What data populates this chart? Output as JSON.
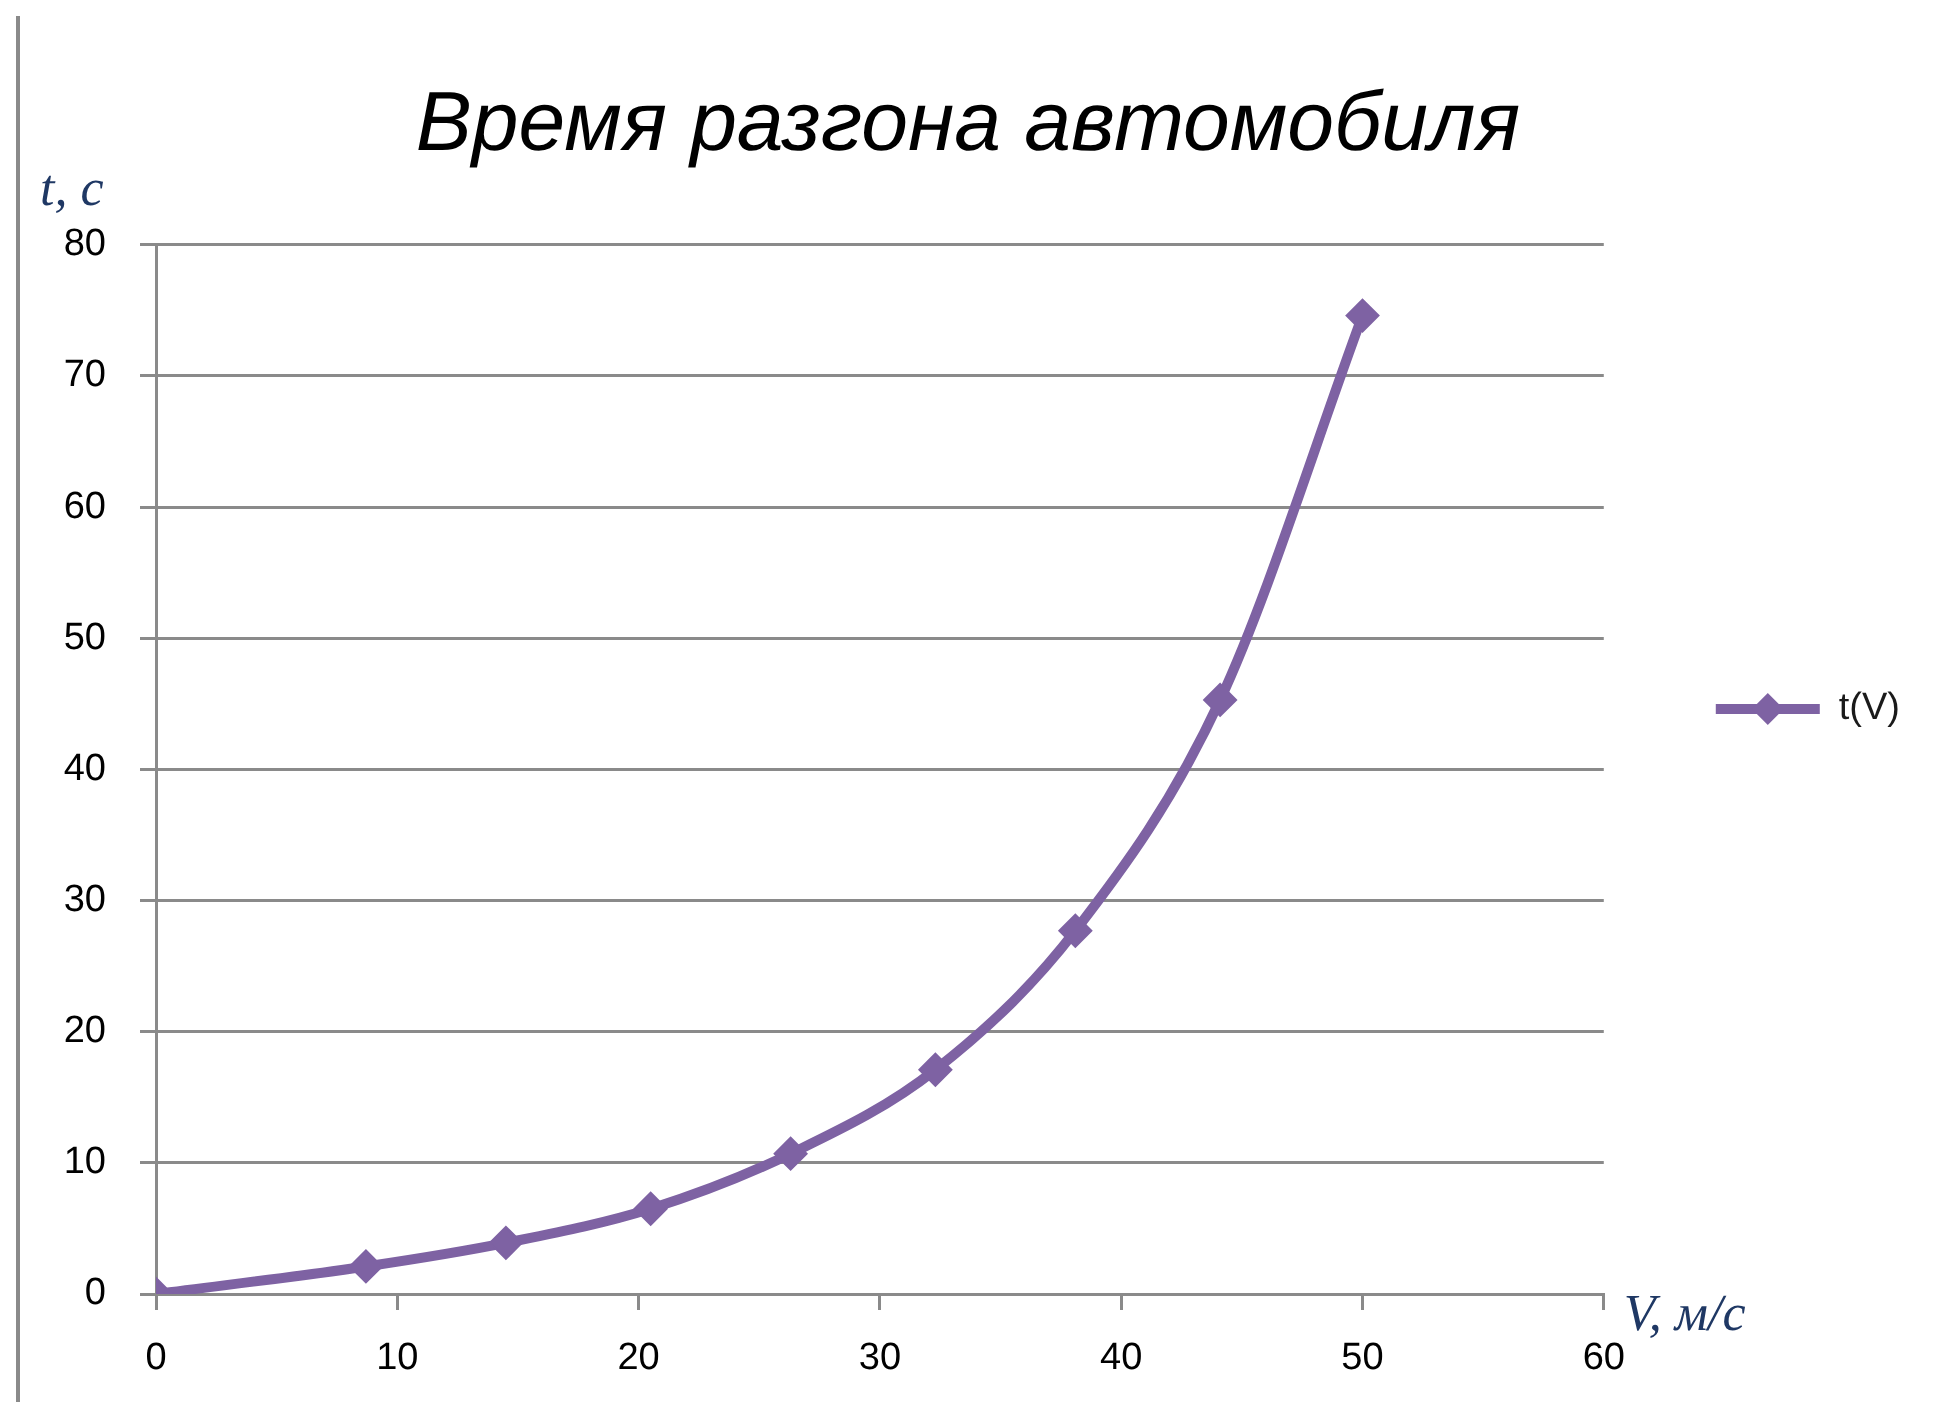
{
  "chart_data": {
    "type": "line",
    "title": "Время разгона автомобиля",
    "xlabel": "V, м/с",
    "ylabel": "t, с",
    "x": [
      0,
      8.7,
      14.5,
      20.5,
      26.3,
      32.3,
      38.1,
      44.1,
      50
    ],
    "series": [
      {
        "name": "t(V)",
        "color": "#7e62a3",
        "values": [
          0,
          2.1,
          3.9,
          6.5,
          10.7,
          17.1,
          27.7,
          45.3,
          74.6
        ]
      }
    ],
    "xlim": [
      0,
      60
    ],
    "xticks": [
      0,
      10,
      20,
      30,
      40,
      50,
      60
    ],
    "ylim": [
      0,
      80
    ],
    "yticks": [
      0,
      10,
      20,
      30,
      40,
      50,
      60,
      70,
      80
    ],
    "grid": "y",
    "legend": "right",
    "marker": "diamond",
    "line_style": "solid"
  }
}
